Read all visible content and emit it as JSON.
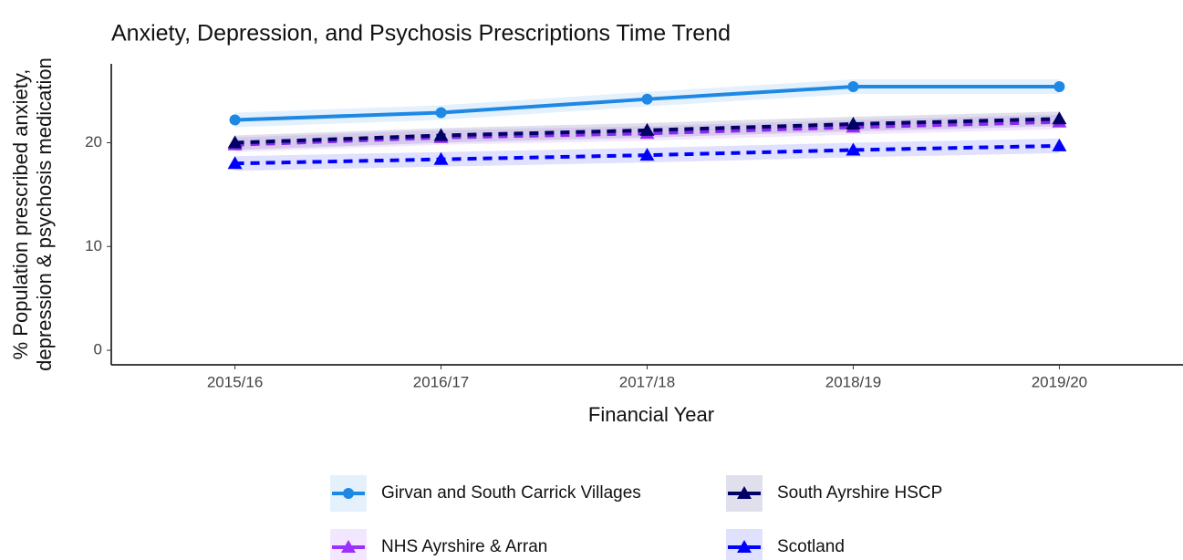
{
  "chart_data": {
    "type": "line",
    "title": "Anxiety, Depression, and Psychosis Prescriptions Time Trend",
    "xlabel": "Financial Year",
    "ylabel": [
      "% Population prescribed anxiety,",
      "depression & psychosis medication"
    ],
    "categories": [
      "2015/16",
      "2016/17",
      "2017/18",
      "2018/19",
      "2019/20"
    ],
    "series": [
      {
        "name": "Girvan and South Carrick Villages",
        "color": "#1e88e5",
        "dashed": false,
        "marker": "circle",
        "values": [
          22.2,
          22.9,
          24.2,
          25.4,
          25.4
        ]
      },
      {
        "name": "NHS Ayrshire & Arran",
        "color": "#9b30ff",
        "dashed": true,
        "marker": "triangle",
        "values": [
          19.8,
          20.5,
          20.9,
          21.5,
          22.0
        ]
      },
      {
        "name": "South Ayrshire HSCP",
        "color": "#000066",
        "dashed": true,
        "marker": "triangle",
        "values": [
          20.0,
          20.7,
          21.2,
          21.8,
          22.3
        ]
      },
      {
        "name": "Scotland",
        "color": "#0000ff",
        "dashed": true,
        "marker": "triangle",
        "values": [
          18.0,
          18.4,
          18.8,
          19.3,
          19.7
        ]
      }
    ],
    "ylim": [
      -1.4,
      27.6
    ],
    "yticks": [
      0,
      10,
      20
    ],
    "grid": false,
    "legend": "bottom"
  }
}
